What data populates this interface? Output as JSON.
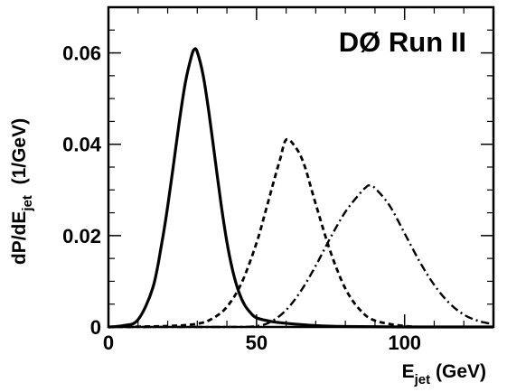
{
  "chart_data": {
    "type": "line",
    "annotation": "DØ Run II",
    "xlabel": {
      "main": "E",
      "sub": "jet",
      "unit": " (GeV)"
    },
    "ylabel": {
      "main": "dP/dE",
      "sub": "jet",
      "unit": "  (1/GeV)"
    },
    "xlim": [
      0,
      130
    ],
    "ylim": [
      0,
      0.07
    ],
    "x_ticks": [
      {
        "value": 0,
        "label": "0"
      },
      {
        "value": 50,
        "label": "50"
      },
      {
        "value": 100,
        "label": "100"
      }
    ],
    "y_ticks": [
      {
        "value": 0,
        "label": "0"
      },
      {
        "value": 0.02,
        "label": "0.02"
      },
      {
        "value": 0.04,
        "label": "0.04"
      },
      {
        "value": 0.06,
        "label": "0.06"
      }
    ],
    "grid": false,
    "legend": "none",
    "series": [
      {
        "style": "solid",
        "x": [
          0,
          5,
          10,
          15,
          18,
          20,
          22,
          24,
          26,
          28,
          29,
          30,
          32,
          34,
          36,
          38,
          40,
          42,
          44,
          46,
          48,
          50,
          55,
          60,
          70,
          80,
          100,
          130
        ],
        "y": [
          0.0,
          0.0003,
          0.0016,
          0.0086,
          0.0183,
          0.0264,
          0.0357,
          0.0453,
          0.0536,
          0.0592,
          0.0608,
          0.0602,
          0.055,
          0.0466,
          0.0368,
          0.027,
          0.0186,
          0.0122,
          0.0077,
          0.0048,
          0.0031,
          0.002,
          0.0012,
          0.0008,
          0.0003,
          0.0001,
          0.0,
          0.0
        ]
      },
      {
        "style": "dashed",
        "x": [
          0,
          20,
          30,
          35,
          40,
          45,
          50,
          53,
          56,
          58,
          60,
          63,
          66,
          70,
          75,
          80,
          85,
          90,
          100,
          110,
          130
        ],
        "y": [
          0.0,
          0.0002,
          0.0007,
          0.0018,
          0.0044,
          0.0097,
          0.0184,
          0.0252,
          0.0323,
          0.0368,
          0.041,
          0.0395,
          0.0357,
          0.0269,
          0.0164,
          0.0084,
          0.0037,
          0.0014,
          0.0002,
          0.0,
          0.0
        ]
      },
      {
        "style": "dashdot",
        "x": [
          0,
          40,
          50,
          55,
          60,
          65,
          70,
          75,
          80,
          85,
          87,
          88,
          90,
          95,
          100,
          105,
          110,
          115,
          120,
          125,
          130
        ],
        "y": [
          0.0,
          0.0,
          0.0002,
          0.0012,
          0.0037,
          0.0079,
          0.0134,
          0.0196,
          0.0252,
          0.0293,
          0.0306,
          0.031,
          0.0304,
          0.0265,
          0.0205,
          0.0144,
          0.0092,
          0.0053,
          0.0027,
          0.0013,
          0.0006
        ]
      }
    ]
  }
}
